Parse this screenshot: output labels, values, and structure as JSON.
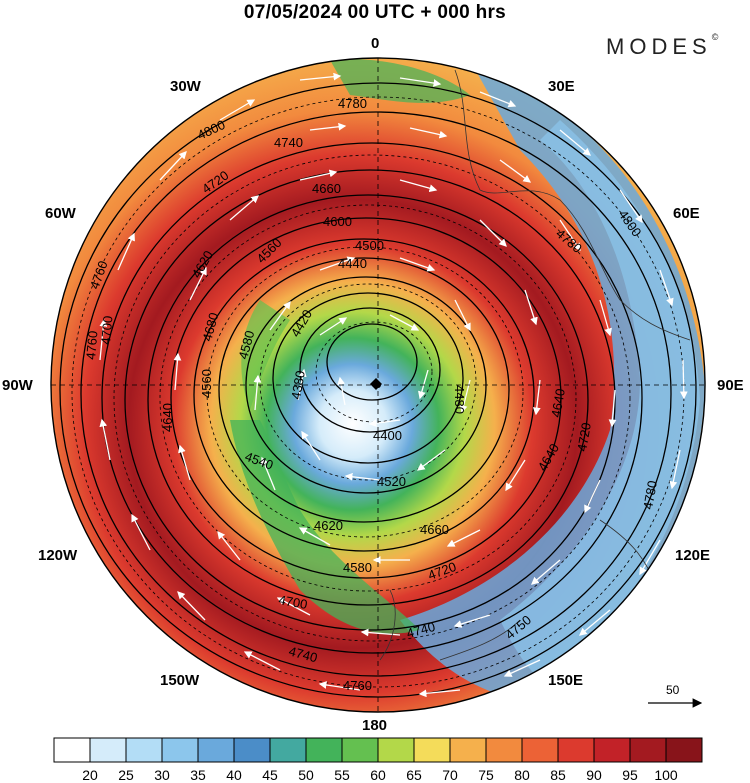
{
  "title": "07/05/2024  00 UTC  + 000 hrs",
  "brand": {
    "name": "MODES",
    "mark": "©"
  },
  "longitude_labels": {
    "top": "0",
    "bottom": "180",
    "left": "90W",
    "right": "90E",
    "nw30": "30W",
    "nw60": "60W",
    "sw120": "120W",
    "sw150": "150W",
    "ne30": "30E",
    "ne60": "60E",
    "se120": "120E",
    "se150": "150E"
  },
  "colorbar": {
    "colors": [
      "#ffffff",
      "#d5ecfa",
      "#b3ddf6",
      "#8cc6ec",
      "#6aa9dc",
      "#4b8dc8",
      "#43a9a0",
      "#43b35a",
      "#64c050",
      "#b3d849",
      "#f4dc5a",
      "#f5b04c",
      "#f28a3e",
      "#ec6236",
      "#dc3a2e",
      "#c22228",
      "#a31a20",
      "#88141a"
    ],
    "labels": [
      "20",
      "25",
      "30",
      "35",
      "40",
      "45",
      "50",
      "55",
      "60",
      "65",
      "70",
      "75",
      "80",
      "85",
      "90",
      "95",
      "100"
    ]
  },
  "contour_labels": [
    "4780",
    "4800",
    "4740",
    "4660",
    "4600",
    "4560",
    "4440",
    "4500",
    "4620",
    "4720",
    "4760",
    "4680",
    "4640",
    "4580",
    "4400",
    "4420",
    "4380",
    "4540",
    "4520",
    "4700",
    "4560",
    "4480",
    "4780",
    "4760",
    "4740",
    "4720",
    "4700",
    "4620",
    "4580",
    "4660",
    "4640",
    "4740",
    "4760",
    "4800",
    "4780",
    "4750",
    "4640",
    "4720"
  ],
  "reference_vector": {
    "label": "50"
  }
}
